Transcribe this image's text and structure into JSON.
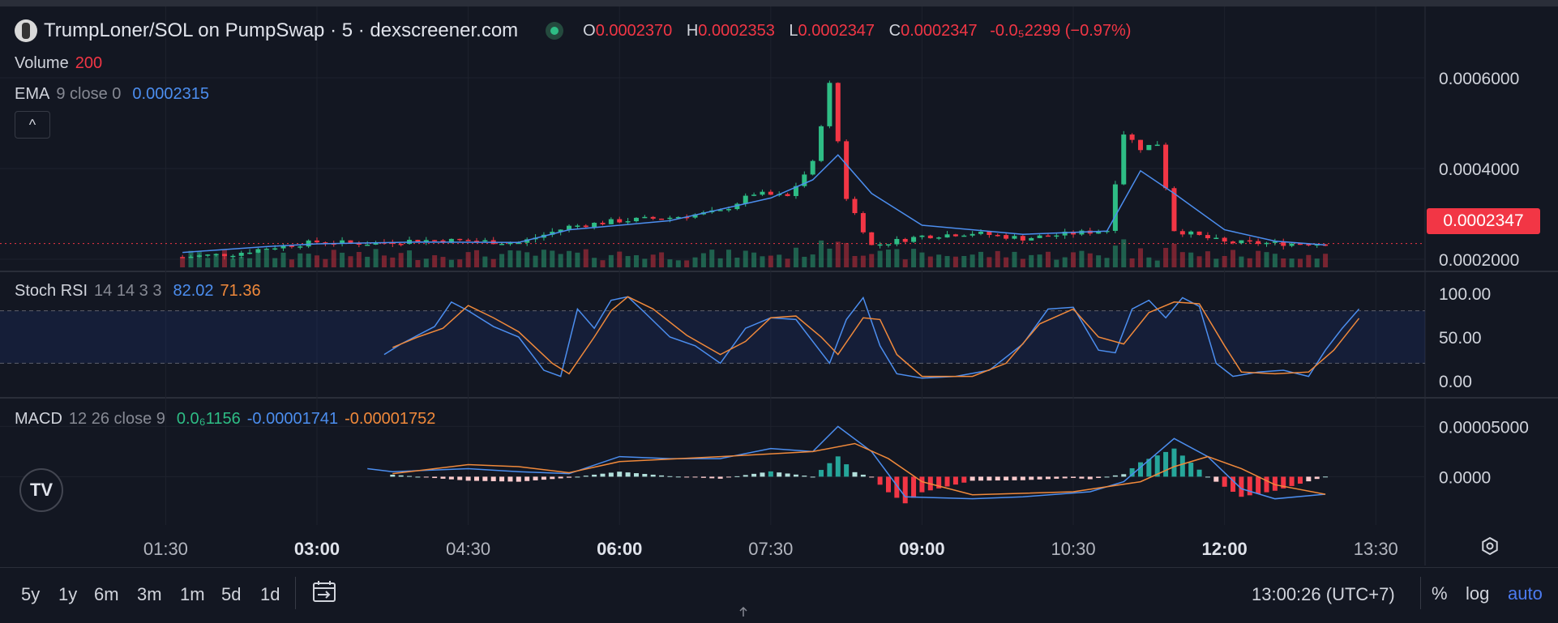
{
  "header": {
    "title": "TrumpLoner/SOL on PumpSwap · 5 · dexscreener.com",
    "ohlc": {
      "o_key": "O",
      "o": "0.0002370",
      "h_key": "H",
      "h": "0.0002353",
      "l_key": "L",
      "l": "0.0002347",
      "c_key": "C",
      "c": "0.0002347",
      "change": "-0.0₅2299 (−0.97%)"
    }
  },
  "legends": {
    "volume": {
      "label": "Volume",
      "value": "200"
    },
    "ema": {
      "label": "EMA",
      "params": "9 close 0",
      "value": "0.0002315"
    },
    "stoch": {
      "label": "Stoch RSI",
      "params": "14 14 3 3",
      "k": "82.02",
      "d": "71.36"
    },
    "macd": {
      "label": "MACD",
      "params": "12 26 close 9",
      "hist": "0.0₆1156",
      "macd": "-0.00001741",
      "signal": "-0.00001752"
    }
  },
  "colors": {
    "up": "#2ebd85",
    "down": "#f23645",
    "blue": "#4c8eef",
    "orange": "#f0893b",
    "bg": "#131722",
    "grid": "#1e222d"
  },
  "icons": {
    "collapse": "chevron-up-icon",
    "logo": "tradingview-logo-icon",
    "calendar": "calendar-range-icon",
    "settings": "settings-icon"
  },
  "collapse_glyph": "^",
  "logo_text": "TV",
  "last_price": "0.0002347",
  "bottom": {
    "timeframes": [
      "5y",
      "1y",
      "6m",
      "3m",
      "1m",
      "5d",
      "1d"
    ],
    "clock": "13:00:26 (UTC+7)",
    "percent": "%",
    "log": "log",
    "auto": "auto"
  },
  "chart_data": [
    {
      "type": "candlestick",
      "title": "TrumpLoner/SOL on PumpSwap · 5 · dexscreener.com",
      "x_ticks": [
        {
          "t": "01:30",
          "bold": false
        },
        {
          "t": "03:00",
          "bold": true
        },
        {
          "t": "04:30",
          "bold": false
        },
        {
          "t": "06:00",
          "bold": true
        },
        {
          "t": "07:30",
          "bold": false
        },
        {
          "t": "09:00",
          "bold": true
        },
        {
          "t": "10:30",
          "bold": false
        },
        {
          "t": "12:00",
          "bold": true
        },
        {
          "t": "13:30",
          "bold": false
        }
      ],
      "x_range": [
        "00:30",
        "13:40"
      ],
      "y_ticks": [
        "0.0006000",
        "0.0004000",
        "0.0002000"
      ],
      "ylim": [
        0.0002,
        0.00065
      ],
      "series": [
        {
          "name": "Price",
          "points": [
            [
              "01:40",
              0.000205
            ],
            [
              "02:10",
              0.000212
            ],
            [
              "02:30",
              0.000225
            ],
            [
              "03:00",
              0.000238
            ],
            [
              "03:30",
              0.000235
            ],
            [
              "04:00",
              0.000242
            ],
            [
              "04:30",
              0.000241
            ],
            [
              "05:00",
              0.000236
            ],
            [
              "05:30",
              0.000272
            ],
            [
              "06:00",
              0.000285
            ],
            [
              "06:30",
              0.000292
            ],
            [
              "07:00",
              0.000305
            ],
            [
              "07:20",
              0.000345
            ],
            [
              "07:40",
              0.000338
            ],
            [
              "07:55",
              0.000412
            ],
            [
              "08:05",
              0.000585
            ],
            [
              "08:15",
              0.000336
            ],
            [
              "08:30",
              0.00023
            ],
            [
              "09:00",
              0.000251
            ],
            [
              "09:30",
              0.000258
            ],
            [
              "10:00",
              0.000246
            ],
            [
              "10:30",
              0.000257
            ],
            [
              "10:50",
              0.000264
            ],
            [
              "11:00",
              0.000478
            ],
            [
              "11:10",
              0.000445
            ],
            [
              "11:20",
              0.000455
            ],
            [
              "11:30",
              0.000265
            ],
            [
              "12:00",
              0.000237
            ],
            [
              "12:30",
              0.000235
            ],
            [
              "13:00",
              0.0002347
            ]
          ]
        },
        {
          "name": "EMA",
          "values_note": "",
          "points": [
            [
              "01:40",
              0.000215
            ],
            [
              "02:30",
              0.000228
            ],
            [
              "03:00",
              0.000234
            ],
            [
              "04:00",
              0.000238
            ],
            [
              "05:00",
              0.000237
            ],
            [
              "05:30",
              0.000265
            ],
            [
              "06:30",
              0.000285
            ],
            [
              "07:30",
              0.000335
            ],
            [
              "07:55",
              0.000375
            ],
            [
              "08:10",
              0.00043
            ],
            [
              "08:30",
              0.000345
            ],
            [
              "09:00",
              0.000275
            ],
            [
              "10:00",
              0.000255
            ],
            [
              "10:50",
              0.000262
            ],
            [
              "11:10",
              0.000395
            ],
            [
              "11:30",
              0.000345
            ],
            [
              "12:00",
              0.000265
            ],
            [
              "12:30",
              0.00024
            ],
            [
              "13:00",
              0.0002315
            ]
          ]
        }
      ],
      "volume_last": "200"
    },
    {
      "type": "line",
      "title": "Stoch RSI",
      "y_ticks": [
        "100.00",
        "50.00",
        "0.00"
      ],
      "ylim": [
        0,
        100
      ],
      "bands": [
        20,
        80
      ],
      "series": [
        {
          "name": "K",
          "points": [
            [
              "03:40",
              30
            ],
            [
              "03:50",
              42
            ],
            [
              "04:00",
              52
            ],
            [
              "04:10",
              62
            ],
            [
              "04:20",
              90
            ],
            [
              "04:30",
              80
            ],
            [
              "04:45",
              62
            ],
            [
              "05:00",
              50
            ],
            [
              "05:15",
              12
            ],
            [
              "05:25",
              5
            ],
            [
              "05:35",
              82
            ],
            [
              "05:45",
              60
            ],
            [
              "05:55",
              92
            ],
            [
              "06:05",
              96
            ],
            [
              "06:15",
              78
            ],
            [
              "06:30",
              50
            ],
            [
              "06:45",
              40
            ],
            [
              "07:00",
              20
            ],
            [
              "07:15",
              60
            ],
            [
              "07:30",
              72
            ],
            [
              "07:45",
              70
            ],
            [
              "07:55",
              45
            ],
            [
              "08:05",
              20
            ],
            [
              "08:15",
              70
            ],
            [
              "08:25",
              95
            ],
            [
              "08:35",
              40
            ],
            [
              "08:45",
              8
            ],
            [
              "09:00",
              3
            ],
            [
              "09:20",
              5
            ],
            [
              "09:40",
              12
            ],
            [
              "10:00",
              42
            ],
            [
              "10:15",
              82
            ],
            [
              "10:30",
              84
            ],
            [
              "10:45",
              35
            ],
            [
              "10:55",
              32
            ],
            [
              "11:05",
              82
            ],
            [
              "11:15",
              92
            ],
            [
              "11:25",
              72
            ],
            [
              "11:35",
              95
            ],
            [
              "11:45",
              85
            ],
            [
              "11:55",
              20
            ],
            [
              "12:05",
              5
            ],
            [
              "12:20",
              10
            ],
            [
              "12:35",
              12
            ],
            [
              "12:50",
              5
            ],
            [
              "13:00",
              35
            ],
            [
              "13:10",
              60
            ],
            [
              "13:20",
              82.02
            ]
          ]
        },
        {
          "name": "D",
          "points": [
            [
              "03:45",
              38
            ],
            [
              "04:00",
              50
            ],
            [
              "04:15",
              60
            ],
            [
              "04:30",
              86
            ],
            [
              "04:45",
              72
            ],
            [
              "05:00",
              56
            ],
            [
              "05:20",
              20
            ],
            [
              "05:30",
              8
            ],
            [
              "05:45",
              50
            ],
            [
              "05:55",
              80
            ],
            [
              "06:05",
              96
            ],
            [
              "06:20",
              82
            ],
            [
              "06:40",
              52
            ],
            [
              "07:00",
              30
            ],
            [
              "07:15",
              45
            ],
            [
              "07:30",
              72
            ],
            [
              "07:45",
              74
            ],
            [
              "08:00",
              50
            ],
            [
              "08:10",
              30
            ],
            [
              "08:25",
              72
            ],
            [
              "08:35",
              70
            ],
            [
              "08:45",
              30
            ],
            [
              "09:00",
              5
            ],
            [
              "09:30",
              5
            ],
            [
              "09:50",
              20
            ],
            [
              "10:10",
              65
            ],
            [
              "10:30",
              82
            ],
            [
              "10:45",
              50
            ],
            [
              "11:00",
              42
            ],
            [
              "11:15",
              78
            ],
            [
              "11:30",
              90
            ],
            [
              "11:45",
              88
            ],
            [
              "12:00",
              40
            ],
            [
              "12:10",
              10
            ],
            [
              "12:30",
              8
            ],
            [
              "12:50",
              10
            ],
            [
              "13:05",
              35
            ],
            [
              "13:20",
              71.36
            ]
          ]
        }
      ]
    },
    {
      "type": "line",
      "title": "MACD",
      "y_ticks": [
        "0.00005000",
        "0.0000"
      ],
      "ylim": [
        -4e-05,
        6e-05
      ],
      "series": [
        {
          "name": "MACD",
          "points": [
            [
              "03:30",
              8e-06
            ],
            [
              "03:45",
              5e-06
            ],
            [
              "04:30",
              8e-06
            ],
            [
              "05:00",
              5e-06
            ],
            [
              "05:30",
              3e-06
            ],
            [
              "06:00",
              2e-05
            ],
            [
              "06:30",
              1.8e-05
            ],
            [
              "07:00",
              1.8e-05
            ],
            [
              "07:30",
              2.8e-05
            ],
            [
              "07:55",
              2.5e-05
            ],
            [
              "08:10",
              5e-05
            ],
            [
              "08:30",
              2.5e-05
            ],
            [
              "08:50",
              -2e-05
            ],
            [
              "09:30",
              -2.2e-05
            ],
            [
              "10:00",
              -2e-05
            ],
            [
              "10:40",
              -1.5e-05
            ],
            [
              "11:00",
              -5e-06
            ],
            [
              "11:30",
              3.8e-05
            ],
            [
              "11:50",
              2e-05
            ],
            [
              "12:10",
              -1.2e-05
            ],
            [
              "12:30",
              -2.2e-05
            ],
            [
              "13:00",
              -1.741e-05
            ]
          ]
        },
        {
          "name": "Signal",
          "points": [
            [
              "03:45",
              3e-06
            ],
            [
              "04:30",
              1.2e-05
            ],
            [
              "05:00",
              1e-05
            ],
            [
              "05:30",
              4e-06
            ],
            [
              "06:00",
              1.5e-05
            ],
            [
              "07:00",
              2e-05
            ],
            [
              "07:55",
              2.5e-05
            ],
            [
              "08:20",
              3.3e-05
            ],
            [
              "08:40",
              1.8e-05
            ],
            [
              "09:00",
              -5e-06
            ],
            [
              "09:30",
              -1.8e-05
            ],
            [
              "10:30",
              -1.5e-05
            ],
            [
              "11:10",
              -5e-06
            ],
            [
              "11:30",
              1e-05
            ],
            [
              "11:50",
              2e-05
            ],
            [
              "12:10",
              8e-06
            ],
            [
              "12:30",
              -8e-06
            ],
            [
              "13:00",
              -1.752e-05
            ]
          ]
        }
      ]
    }
  ]
}
